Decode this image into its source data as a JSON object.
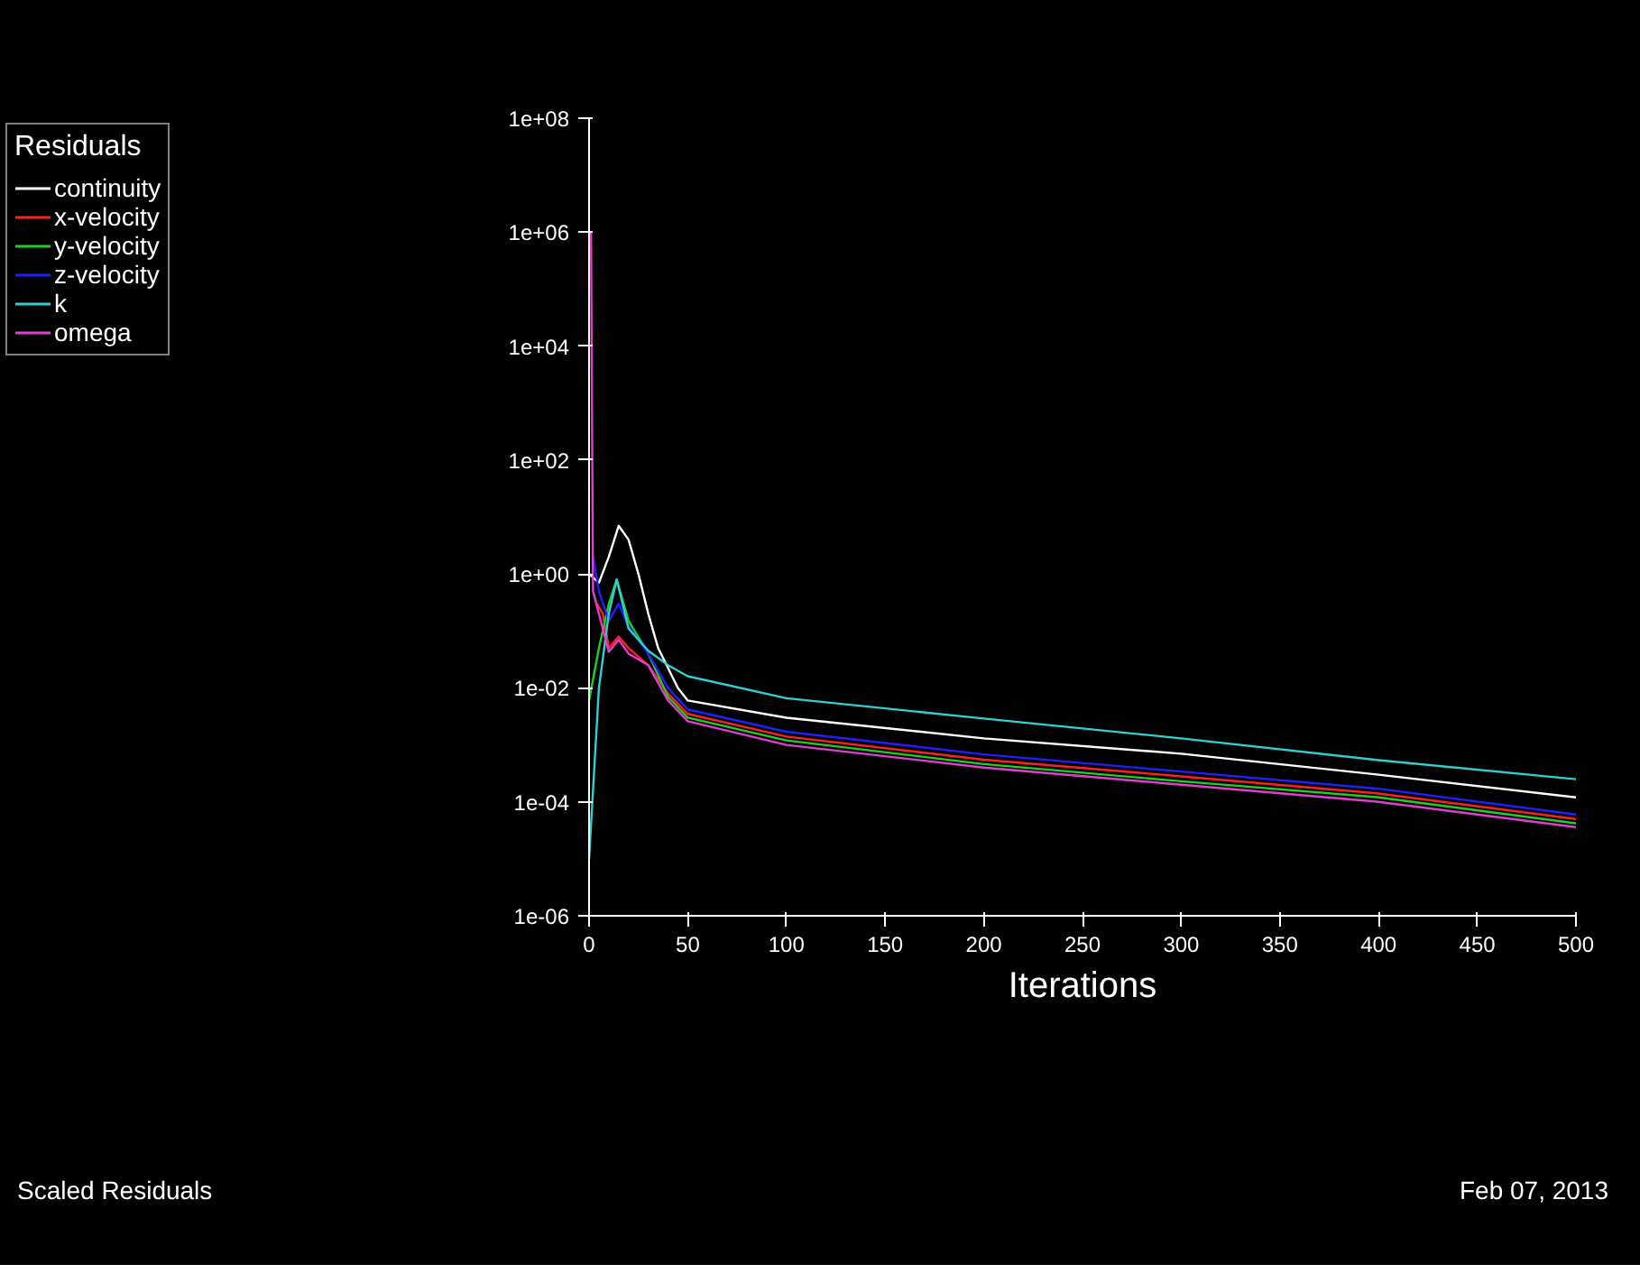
{
  "chart_data": {
    "type": "line",
    "xlabel": "Iterations",
    "legend_title": "Residuals",
    "legend": "top left",
    "log": "y",
    "grid": false,
    "marker": "none",
    "line_style": "solid",
    "xlim": [
      0,
      500
    ],
    "ylim": [
      1e-06,
      100000000.0
    ],
    "xticks": [
      0,
      50,
      100,
      150,
      200,
      250,
      300,
      350,
      400,
      450,
      500
    ],
    "yticks": [
      {
        "value": 1e-06,
        "label": "1e-06"
      },
      {
        "value": 0.0001,
        "label": "1e-04"
      },
      {
        "value": 0.01,
        "label": "1e-02"
      },
      {
        "value": 1,
        "label": "1e+00"
      },
      {
        "value": 100,
        "label": "1e+02"
      },
      {
        "value": 10000,
        "label": "1e+04"
      },
      {
        "value": 1000000,
        "label": "1e+06"
      },
      {
        "value": 100000000,
        "label": "1e+08"
      }
    ],
    "annotations": [
      "Scaled Residuals",
      "Feb 07, 2013"
    ],
    "series": [
      {
        "name": "continuity",
        "color": "#ffffff",
        "x": [
          0,
          5,
          10,
          15,
          20,
          25,
          30,
          35,
          45,
          50,
          100,
          200,
          300,
          400,
          500
        ],
        "values": [
          1,
          0.7,
          2,
          7,
          4,
          1,
          0.2,
          0.05,
          0.01,
          0.006,
          0.003,
          0.0013,
          0.0007,
          0.0003,
          0.00012
        ]
      },
      {
        "name": "x-velocity",
        "color": "#ff2020",
        "x": [
          4,
          7,
          10,
          15,
          20,
          30,
          40,
          50,
          100,
          200,
          300,
          400,
          500
        ],
        "values": [
          0.3,
          0.2,
          0.05,
          0.08,
          0.05,
          0.025,
          0.008,
          0.0035,
          0.0014,
          0.00055,
          0.00028,
          0.00014,
          5e-05
        ]
      },
      {
        "name": "y-velocity",
        "color": "#20d020",
        "x": [
          0,
          5,
          10,
          14,
          20,
          30,
          40,
          50,
          100,
          200,
          300,
          400,
          500
        ],
        "values": [
          0.006,
          0.05,
          0.3,
          0.8,
          0.15,
          0.04,
          0.007,
          0.003,
          0.0012,
          0.00046,
          0.00023,
          0.00012,
          4.2e-05
        ]
      },
      {
        "name": "z-velocity",
        "color": "#2020ff",
        "x": [
          2,
          5,
          10,
          15,
          20,
          30,
          40,
          50,
          100,
          200,
          300,
          400,
          500
        ],
        "values": [
          2,
          0.5,
          0.15,
          0.3,
          0.12,
          0.04,
          0.01,
          0.0042,
          0.0017,
          0.00068,
          0.00034,
          0.00017,
          6e-05
        ]
      },
      {
        "name": "k",
        "color": "#30d0d0",
        "x": [
          0,
          5,
          10,
          14,
          20,
          30,
          40,
          50,
          100,
          200,
          300,
          400,
          500
        ],
        "values": [
          1e-05,
          0.01,
          0.2,
          0.8,
          0.11,
          0.045,
          0.025,
          0.016,
          0.0066,
          0.0029,
          0.0013,
          0.00054,
          0.00025
        ]
      },
      {
        "name": "omega",
        "color": "#e040d0",
        "x": [
          1,
          2,
          10,
          15,
          20,
          30,
          40,
          50,
          100,
          200,
          300,
          400,
          500
        ],
        "values": [
          1000000,
          0.5,
          0.043,
          0.07,
          0.04,
          0.025,
          0.006,
          0.0026,
          0.001,
          0.0004,
          0.0002,
          0.0001,
          3.6e-05
        ]
      }
    ]
  }
}
